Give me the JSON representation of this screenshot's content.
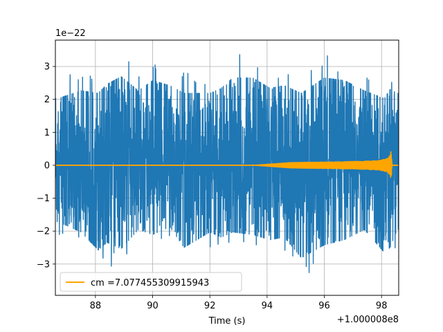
{
  "chart_data": {
    "type": "line",
    "title": "",
    "xlabel": "Time (s)",
    "ylabel": "",
    "x_offset_label": "+1.000008e8",
    "y_scale_label": "1e−22",
    "xlim": [
      86.6,
      98.6
    ],
    "ylim": [
      -3.95,
      3.8
    ],
    "x_ticks": [
      88,
      90,
      92,
      94,
      96,
      98
    ],
    "x_tick_labels": [
      "88",
      "90",
      "92",
      "94",
      "96",
      "98"
    ],
    "y_ticks": [
      -3,
      -2,
      -1,
      0,
      1,
      2,
      3
    ],
    "y_tick_labels": [
      "−3",
      "−2",
      "−1",
      "0",
      "1",
      "2",
      "3"
    ],
    "grid": true,
    "legend_placement": "lower-left",
    "series": [
      {
        "kind": "noise",
        "color": "#1f77b4",
        "x_range": [
          86.6,
          98.6
        ],
        "envelope": [
          {
            "x": 86.7,
            "min": -2.2,
            "max": 2.6
          },
          {
            "x": 87.5,
            "min": -2.6,
            "max": 2.9
          },
          {
            "x": 88.1,
            "min": -3.3,
            "max": 2.8
          },
          {
            "x": 88.4,
            "min": -3.0,
            "max": 3.15
          },
          {
            "x": 88.9,
            "min": -3.25,
            "max": 3.45
          },
          {
            "x": 89.5,
            "min": -2.5,
            "max": 2.9
          },
          {
            "x": 90.0,
            "min": -2.7,
            "max": 3.3
          },
          {
            "x": 90.6,
            "min": -2.4,
            "max": 3.1
          },
          {
            "x": 91.1,
            "min": -3.2,
            "max": 2.8
          },
          {
            "x": 92.0,
            "min": -2.6,
            "max": 2.8
          },
          {
            "x": 92.4,
            "min": -2.8,
            "max": 3.0
          },
          {
            "x": 92.8,
            "min": -2.6,
            "max": 3.4
          },
          {
            "x": 93.5,
            "min": -2.7,
            "max": 3.4
          },
          {
            "x": 94.1,
            "min": -2.9,
            "max": 3.0
          },
          {
            "x": 94.6,
            "min": -2.8,
            "max": 3.1
          },
          {
            "x": 95.2,
            "min": -3.6,
            "max": 2.8
          },
          {
            "x": 96.0,
            "min": -3.1,
            "max": 3.4
          },
          {
            "x": 96.7,
            "min": -2.9,
            "max": 3.3
          },
          {
            "x": 97.4,
            "min": -2.5,
            "max": 2.9
          },
          {
            "x": 98.1,
            "min": -3.4,
            "max": 2.6
          },
          {
            "x": 98.3,
            "min": -3.2,
            "max": 2.95
          },
          {
            "x": 98.55,
            "min": -2.5,
            "max": 2.8
          }
        ]
      },
      {
        "kind": "chirp",
        "name": "cm =7.077455309915943",
        "color": "#ffa500",
        "envelope": [
          {
            "x": 86.6,
            "amp": 0.0
          },
          {
            "x": 93.6,
            "amp": 0.0
          },
          {
            "x": 94.2,
            "amp": 0.04
          },
          {
            "x": 94.8,
            "amp": 0.08
          },
          {
            "x": 95.4,
            "amp": 0.09
          },
          {
            "x": 96.4,
            "amp": 0.1
          },
          {
            "x": 97.4,
            "amp": 0.12
          },
          {
            "x": 97.9,
            "amp": 0.14
          },
          {
            "x": 98.2,
            "amp": 0.2
          },
          {
            "x": 98.3,
            "amp": 0.3
          },
          {
            "x": 98.33,
            "amp": 0.45
          },
          {
            "x": 98.37,
            "amp": 0.0
          },
          {
            "x": 98.6,
            "amp": 0.0
          }
        ]
      }
    ]
  }
}
